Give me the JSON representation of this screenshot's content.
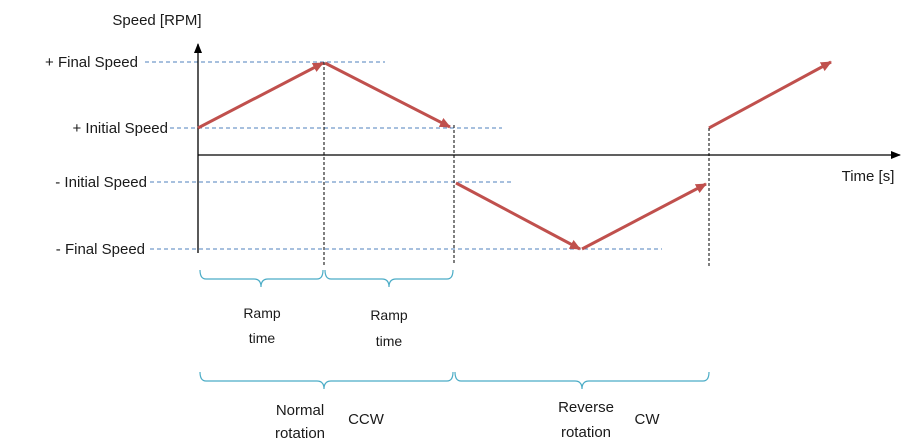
{
  "y_axis_label": "Speed [RPM]",
  "x_axis_label": "Time [s]",
  "levels": {
    "pos_final": "+ Final Speed",
    "pos_initial": "+ Initial Speed",
    "neg_initial": "- Initial Speed",
    "neg_final": "- Final Speed"
  },
  "ramp_labels": [
    {
      "line1": "Ramp",
      "line2": "time"
    },
    {
      "line1": "Ramp",
      "line2": "time"
    }
  ],
  "phases": [
    {
      "line1": "Normal",
      "line2": "rotation",
      "direction": "CCW"
    },
    {
      "line1": "Reverse",
      "line2": "rotation",
      "direction": "CW"
    }
  ],
  "colors": {
    "profile_arrow": "#c0504d",
    "guide_dashed": "#4f81bd",
    "brace": "#4bacc6",
    "axis": "#000000"
  }
}
